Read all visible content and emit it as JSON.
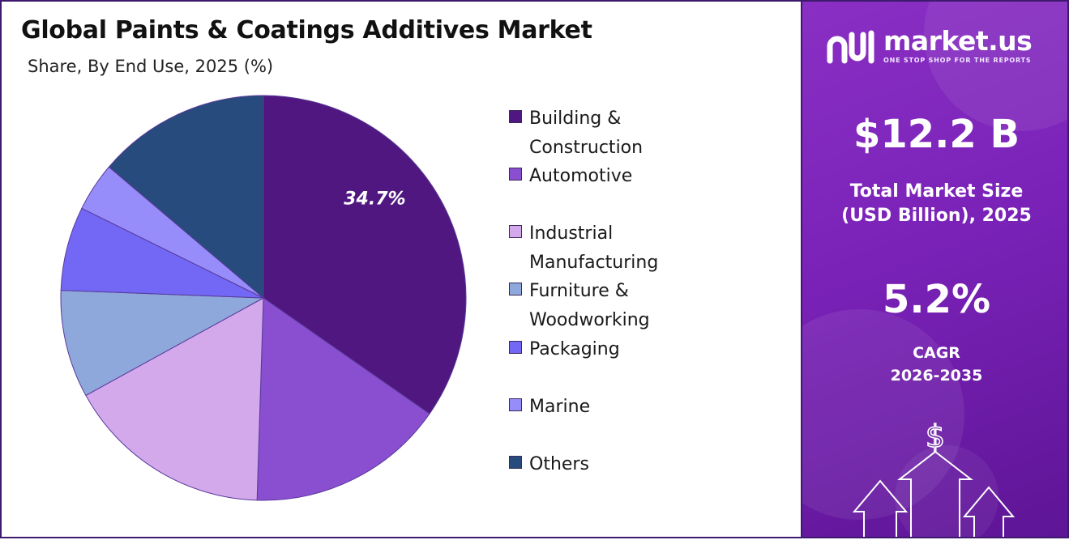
{
  "header": {
    "title": "Global Paints & Coatings Additives Market",
    "subtitle": "Share, By End Use, 2025 (%)"
  },
  "chart_data": {
    "type": "pie",
    "title": "Global Paints & Coatings Additives Market",
    "subtitle": "Share, By End Use, 2025 (%)",
    "categories": [
      "Building & Construction",
      "Automotive",
      "Industrial Manufacturing",
      "Furniture & Woodworking",
      "Packaging",
      "Marine",
      "Others"
    ],
    "values": [
      34.7,
      15.8,
      16.5,
      8.6,
      6.7,
      3.9,
      13.8
    ],
    "colors": [
      "#4f177f",
      "#8a4fd0",
      "#d3a9ec",
      "#8ea8dc",
      "#7268f5",
      "#978dfa",
      "#264b7c"
    ],
    "data_labels": [
      "34.7%",
      "",
      "",
      "",
      "",
      "",
      ""
    ],
    "legend_position": "right"
  },
  "legend": {
    "items": [
      {
        "label": "Building & Construction",
        "color": "#4f177f"
      },
      {
        "label": "Automotive",
        "color": "#8a4fd0"
      },
      {
        "label": "Industrial\nManufacturing",
        "color": "#d3a9ec"
      },
      {
        "label": "Furniture &\nWoodworking",
        "color": "#8ea8dc"
      },
      {
        "label": "Packaging",
        "color": "#7268f5"
      },
      {
        "label": "Marine",
        "color": "#978dfa"
      },
      {
        "label": "Others",
        "color": "#264b7c"
      }
    ]
  },
  "sidebar": {
    "brand_name": "market.us",
    "brand_tagline": "ONE STOP SHOP FOR THE REPORTS",
    "market_size_value": "$12.2 B",
    "market_size_label_line1": "Total Market Size",
    "market_size_label_line2": "(USD Billion), 2025",
    "cagr_value": "5.2%",
    "cagr_label": "CAGR",
    "cagr_period": "2026-2035",
    "dollar_symbol": "$",
    "panel_color": "#7a22b8"
  }
}
